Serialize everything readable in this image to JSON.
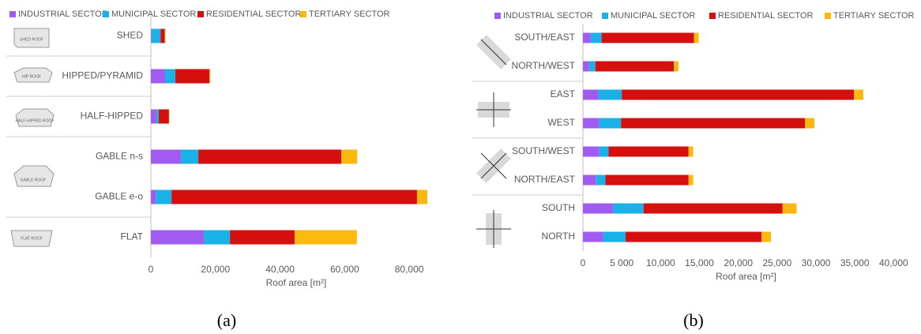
{
  "chart_data": [
    {
      "type": "bar",
      "orientation": "horizontal",
      "legend": "top",
      "grid": false,
      "categories": [
        "SHED",
        "HIPPED/PYRAMID",
        "HALF-HIPPED",
        "GABLE n-s",
        "GABLE e-o",
        "FLAT"
      ],
      "series": [
        {
          "name": "INDUSTRIAL SECTOR",
          "color": "#a05cf0",
          "values": [
            200,
            4400,
            1700,
            9300,
            1500,
            16400
          ]
        },
        {
          "name": "MUNICIPAL SECTOR",
          "color": "#19b1e8",
          "values": [
            2800,
            3200,
            700,
            5400,
            4900,
            8100
          ]
        },
        {
          "name": "RESIDENTIAL SECTOR",
          "color": "#d50e0e",
          "values": [
            1300,
            10500,
            3200,
            44300,
            76000,
            20000
          ]
        },
        {
          "name": "TERTIARY SECTOR",
          "color": "#fbb80e",
          "values": [
            200,
            300,
            100,
            4900,
            3200,
            19300
          ]
        }
      ],
      "xlim": [
        0,
        90000
      ],
      "xticks": [
        0,
        {
          "value": 20000,
          "label": "20,000"
        },
        {
          "value": 40000,
          "label": "40,000"
        },
        {
          "value": 60000,
          "label": "60,000"
        },
        {
          "value": 80000,
          "label": "80,000"
        }
      ],
      "xlabel": "Roof area [m²]",
      "caption": "(a)",
      "icons": [
        "SHED ROOF",
        "HIP ROOF",
        "HALF-HIPPED ROOF",
        "GABLE ROOF",
        "FLAT ROOF"
      ]
    },
    {
      "type": "bar",
      "orientation": "horizontal",
      "legend": "top",
      "grid": false,
      "categories": [
        "SOUTH/EAST",
        "NORTH/WEST",
        "EAST",
        "WEST",
        "SOUTH/WEST",
        "NORTH/EAST",
        "SOUTH",
        "NORTH"
      ],
      "series": [
        {
          "name": "INDUSTRIAL SECTOR",
          "color": "#a05cf0",
          "values": [
            1000,
            800,
            2000,
            2100,
            2100,
            1700,
            3900,
            2600
          ]
        },
        {
          "name": "MUNICIPAL SECTOR",
          "color": "#19b1e8",
          "values": [
            1400,
            800,
            3000,
            2800,
            1200,
            1200,
            3900,
            2900
          ]
        },
        {
          "name": "RESIDENTIAL SECTOR",
          "color": "#d50e0e",
          "values": [
            11900,
            10100,
            29900,
            23700,
            10300,
            10700,
            17900,
            17500
          ]
        },
        {
          "name": "TERTIARY SECTOR",
          "color": "#fbb80e",
          "values": [
            600,
            600,
            1200,
            1200,
            600,
            600,
            1800,
            1200
          ]
        }
      ],
      "xlim": [
        0,
        42000
      ],
      "xticks": [
        0,
        {
          "value": 5000,
          "label": "5 000"
        },
        {
          "value": 10000,
          "label": "10,000"
        },
        {
          "value": 15000,
          "label": "15,000"
        },
        {
          "value": 20000,
          "label": "20,000"
        },
        {
          "value": 25000,
          "label": "25,000"
        },
        {
          "value": 30000,
          "label": "30,000"
        },
        {
          "value": 35000,
          "label": "35,000"
        },
        {
          "value": 40000,
          "label": "40,000"
        }
      ],
      "xlabel": "Roof area [m²]",
      "caption": "(b)"
    }
  ]
}
